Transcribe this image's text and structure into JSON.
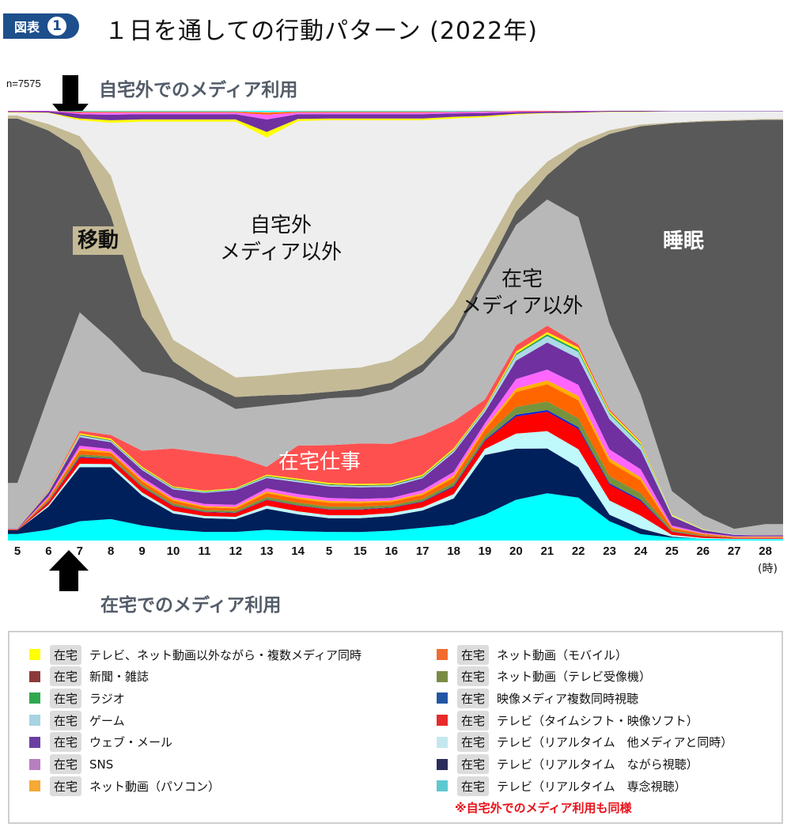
{
  "header": {
    "badge": "図表",
    "badge_number": "1",
    "title": "１日を通しての行動パターン (2022年)"
  },
  "sample": "n=7575",
  "captions": {
    "outside": "自宅外でのメディア利用",
    "home": "在宅でのメディア利用"
  },
  "annotations": {
    "commute": "移動",
    "outside_nonmedia": [
      "自宅外",
      "メディア以外"
    ],
    "home_nonmedia": [
      "在宅",
      "メディア以外"
    ],
    "sleep": "睡眠",
    "home_work": "在宅仕事"
  },
  "chart_data": {
    "type": "area",
    "stacked": true,
    "unit": "%",
    "ylim": [
      0,
      100
    ],
    "xlabel": "(時)",
    "categories": [
      "5",
      "6",
      "7",
      "8",
      "9",
      "10",
      "11",
      "12",
      "13",
      "14",
      "5",
      "15",
      "16",
      "17",
      "18",
      "19",
      "20",
      "21",
      "22",
      "23",
      "24",
      "25",
      "26",
      "27",
      "28"
    ],
    "series": [
      {
        "group": "在宅",
        "name": "テレビ（リアルタイム　専念視聴）",
        "color": "#00ffff",
        "values": [
          1.5,
          2.5,
          4.5,
          5,
          3.5,
          2.5,
          2,
          2,
          2.5,
          2.2,
          2,
          2,
          2.3,
          3,
          3.7,
          6,
          9.5,
          11,
          10,
          4.5,
          1.5,
          0.7,
          0.4,
          0.3,
          0.3
        ]
      },
      {
        "group": "在宅",
        "name": "テレビ（リアルタイム　ながら視聴）",
        "color": "#00205b",
        "values": [
          0.9,
          5.4,
          12.6,
          12.1,
          7,
          3.8,
          3.2,
          3,
          4.9,
          3.9,
          3.2,
          3.2,
          3.4,
          4,
          6.1,
          13.9,
          11.9,
          10.4,
          7.1,
          1.5,
          1.3,
          0.2,
          0,
          0,
          0
        ]
      },
      {
        "group": "在宅",
        "name": "テレビ（リアルタイム　他メディアと同時）",
        "color": "#c0f9fb",
        "values": [
          0,
          0.4,
          0.8,
          0.7,
          0.7,
          0.6,
          0.5,
          0.5,
          0.7,
          0.7,
          0.7,
          0.7,
          0.7,
          0.7,
          1.0,
          1.4,
          3.5,
          4.0,
          4.2,
          3.3,
          3.0,
          0.4,
          0.2,
          0.1,
          0.1
        ]
      },
      {
        "group": "在宅",
        "name": "テレビ（タイムシフト・映像ソフト）",
        "color": "#ff0000",
        "values": [
          0.1,
          0.7,
          1.4,
          1.2,
          1.2,
          1.1,
          0.9,
          0.9,
          1.3,
          1.3,
          1.3,
          1.3,
          1.2,
          1.3,
          1.7,
          1.9,
          4.0,
          4.5,
          4.7,
          3.7,
          3.4,
          0.7,
          0.4,
          0.2,
          0.2
        ]
      },
      {
        "group": "在宅",
        "name": "映像メディア複数同時視聴",
        "color": "#0022dd",
        "values": [
          0,
          0.1,
          0.2,
          0.1,
          0.1,
          0.1,
          0.1,
          0.1,
          0.1,
          0.1,
          0.1,
          0.1,
          0.1,
          0.1,
          0.2,
          0.2,
          0.4,
          0.4,
          0.4,
          0.3,
          0.3,
          0.1,
          0,
          0,
          0
        ]
      },
      {
        "group": "在宅",
        "name": "ネット動画（テレビ受像機）",
        "color": "#77933c",
        "values": [
          0,
          0.3,
          0.6,
          0.5,
          0.5,
          0.5,
          0.4,
          0.4,
          0.6,
          0.6,
          0.6,
          0.6,
          0.5,
          0.6,
          0.8,
          0.9,
          1.8,
          2.0,
          2.1,
          1.7,
          1.5,
          0.3,
          0.2,
          0.1,
          0.1
        ]
      },
      {
        "group": "在宅",
        "name": "ネット動画（モバイル）",
        "color": "#ff6600",
        "values": [
          0.1,
          0.4,
          0.9,
          0.8,
          0.8,
          0.7,
          0.6,
          0.6,
          0.9,
          0.9,
          0.9,
          0.8,
          0.8,
          0.9,
          1.1,
          1.5,
          3.5,
          4.0,
          4.2,
          3.3,
          3.0,
          0.5,
          0.3,
          0.1,
          0.1
        ]
      },
      {
        "group": "在宅",
        "name": "ネット動画（パソコン）",
        "color": "#ffb000",
        "values": [
          0,
          0.2,
          0.4,
          0.3,
          0.3,
          0.3,
          0.3,
          0.3,
          0.4,
          0.4,
          0.4,
          0.4,
          0.3,
          0.4,
          0.5,
          0.5,
          0.8,
          0.9,
          1.0,
          0.8,
          0.7,
          0.2,
          0.1,
          0.1,
          0.1
        ]
      },
      {
        "group": "在宅",
        "name": "SNS",
        "color": "#ff66ff",
        "values": [
          0,
          0.3,
          0.7,
          0.6,
          0.6,
          0.5,
          0.5,
          0.5,
          0.7,
          0.7,
          0.7,
          0.6,
          0.6,
          0.7,
          0.9,
          1.0,
          2.2,
          2.5,
          2.6,
          2.1,
          1.9,
          0.4,
          0.2,
          0.1,
          0.1
        ]
      },
      {
        "group": "在宅",
        "name": "ウェブ・メール",
        "color": "#7030a0",
        "values": [
          0.1,
          0.9,
          2.0,
          1.6,
          1.7,
          1.8,
          2.6,
          3.4,
          2.4,
          2.8,
          2.7,
          2.7,
          2.6,
          2.8,
          4.5,
          2.6,
          4.3,
          6.3,
          6.2,
          7.0,
          4.5,
          2.1,
          0.6,
          0.3,
          0.2
        ]
      },
      {
        "group": "在宅",
        "name": "ゲーム",
        "color": "#add8e6",
        "values": [
          0,
          0.2,
          0.4,
          0.3,
          0.3,
          0.3,
          0.2,
          0.2,
          0.3,
          0.3,
          0.3,
          0.3,
          0.3,
          0.3,
          0.4,
          0.6,
          1.3,
          1.5,
          1.5,
          1.2,
          1.1,
          0.2,
          0.1,
          0.1,
          0
        ]
      },
      {
        "group": "在宅",
        "name": "ラジオ",
        "color": "#00b050",
        "values": [
          0,
          0.1,
          0.1,
          0.1,
          0.1,
          0.1,
          0.1,
          0.1,
          0.1,
          0.1,
          0.1,
          0.1,
          0.1,
          0.1,
          0.1,
          0.1,
          0.2,
          0.3,
          0.3,
          0.2,
          0.2,
          0,
          0,
          0,
          0
        ]
      },
      {
        "group": "在宅",
        "name": "新聞・雑誌",
        "color": "#8b3a3a",
        "values": [
          0,
          0,
          0.1,
          0.1,
          0.1,
          0.1,
          0,
          0,
          0.1,
          0.1,
          0.1,
          0.1,
          0.1,
          0.1,
          0.1,
          0.1,
          0.1,
          0.1,
          0.1,
          0.1,
          0.1,
          0,
          0,
          0,
          0
        ]
      },
      {
        "group": "在宅",
        "name": "テレビ、ネット動画以外ながら・複数メディア同時",
        "color": "#ffff00",
        "values": [
          0,
          0.1,
          0.3,
          0.3,
          0.3,
          0.2,
          0.2,
          0.2,
          0.3,
          0.3,
          0.3,
          0.3,
          0.3,
          0.3,
          0.4,
          0.3,
          0.5,
          0.5,
          0.6,
          0.4,
          0.4,
          0.2,
          0.1,
          0,
          0
        ]
      },
      {
        "name": "在宅仕事",
        "color": "#ff5050",
        "values": [
          0,
          0.2,
          0.6,
          0.9,
          3.7,
          8.8,
          8.8,
          7.4,
          1.8,
          7.7,
          8.8,
          9.4,
          9.2,
          9.2,
          6.3,
          1.8,
          1.5,
          1.5,
          0.7,
          0.4,
          0.2,
          0,
          0,
          0,
          0
        ]
      },
      {
        "name": "在宅メディア以外",
        "color": "#b8b8b8",
        "values": [
          10.7,
          21.9,
          27.6,
          22.1,
          18.4,
          16.4,
          14.2,
          11,
          14.2,
          10.1,
          10.9,
          10.9,
          12.5,
          14.7,
          19.3,
          27.6,
          28,
          29.3,
          29.7,
          19.9,
          10.9,
          5.5,
          3.3,
          1.3,
          2.6
        ]
      },
      {
        "name": "睡眠",
        "color": "#595959",
        "values": [
          84.7,
          61.7,
          37.8,
          28.9,
          12.9,
          3.9,
          2.2,
          2.8,
          2.4,
          1.8,
          1.5,
          1.8,
          1.7,
          1.8,
          1.5,
          1.8,
          3.1,
          5.7,
          16,
          44.2,
          62.6,
          85.5,
          91.3,
          94.8,
          93.9
        ]
      },
      {
        "name": "移動",
        "color": "#c4ba96",
        "values": [
          0.7,
          1.5,
          3.3,
          9.4,
          10.1,
          5.0,
          5.5,
          4.6,
          4.6,
          5.2,
          5.2,
          5.0,
          5.2,
          5.5,
          6.4,
          5.5,
          4.2,
          3.1,
          1.5,
          0.9,
          0.4,
          0.2,
          0.2,
          0.2,
          0.2
        ]
      },
      {
        "name": "自宅外メディア以外",
        "color": "#eeeeee",
        "values": [
          0.7,
          2.6,
          3.7,
          12.3,
          35.2,
          50.8,
          55.1,
          59.5,
          55.2,
          58.4,
          58,
          57.6,
          55.8,
          51.2,
          43.3,
          30.8,
          18.4,
          11.2,
          6.8,
          4.2,
          2.9,
          2.6,
          2.2,
          2.0,
          1.8
        ]
      },
      {
        "group": "自宅外",
        "name": "テレビ、ネット動画以外ながら・複数メディア同時",
        "color": "#ffff00",
        "values": [
          0.1,
          0.1,
          0.4,
          0.6,
          0.5,
          0.5,
          0.5,
          0.5,
          1.3,
          0.5,
          0.4,
          0.4,
          0.4,
          0.4,
          0.4,
          0.3,
          0.2,
          0.1,
          0.1,
          0.1,
          0.1,
          0,
          0,
          0,
          0
        ]
      },
      {
        "group": "自宅外",
        "name": "ウェブ・メール",
        "color": "#7030a0",
        "values": [
          0.2,
          0.3,
          1.0,
          1.3,
          1.2,
          1.2,
          1.2,
          1.2,
          2.9,
          1.1,
          1.0,
          1.0,
          1.0,
          1.0,
          0.8,
          0.7,
          0.4,
          0.3,
          0.3,
          0.2,
          0.2,
          0.1,
          0.1,
          0.1,
          0.1
        ]
      },
      {
        "group": "自宅外",
        "name": "SNS",
        "color": "#ff66ff",
        "values": [
          0.1,
          0.1,
          0.4,
          0.5,
          0.4,
          0.4,
          0.4,
          0.4,
          1.1,
          0.4,
          0.4,
          0.4,
          0.4,
          0.4,
          0.3,
          0.3,
          0.2,
          0.1,
          0.1,
          0,
          0,
          0,
          0,
          0,
          0
        ]
      },
      {
        "group": "自宅外",
        "name": "ネット動画（モバイル）",
        "color": "#ff6600",
        "values": [
          0,
          0,
          0.2,
          0.2,
          0.2,
          0.2,
          0.2,
          0.2,
          0.5,
          0.2,
          0.2,
          0.2,
          0.2,
          0.2,
          0.1,
          0.1,
          0.1,
          0.1,
          0,
          0,
          0,
          0,
          0,
          0,
          0
        ]
      },
      {
        "group": "自宅外",
        "name": "ゲーム",
        "color": "#add8e6",
        "values": [
          0,
          0,
          0.1,
          0.1,
          0.1,
          0.1,
          0.1,
          0.1,
          0.2,
          0.1,
          0.1,
          0.1,
          0.1,
          0.1,
          0.1,
          0,
          0,
          0,
          0,
          0,
          0,
          0,
          0,
          0,
          0
        ]
      },
      {
        "group": "自宅外",
        "name": "テレビ（リアルタイム　専念視聴）",
        "color": "#00ffff",
        "values": [
          0,
          0,
          0.1,
          0.1,
          0.1,
          0.1,
          0.1,
          0.1,
          0.2,
          0.1,
          0.1,
          0.1,
          0.1,
          0.1,
          0.1,
          0.1,
          0,
          0,
          0,
          0,
          0,
          0,
          0,
          0,
          0
        ]
      }
    ]
  },
  "legend": {
    "tag": "在宅",
    "left": [
      {
        "label": "テレビ、ネット動画以外ながら・複数メディア同時",
        "color": "#ffff00"
      },
      {
        "label": "新聞・雑誌",
        "color": "#8b3a3a"
      },
      {
        "label": "ラジオ",
        "color": "#2ea84f"
      },
      {
        "label": "ゲーム",
        "color": "#a6d4e0"
      },
      {
        "label": "ウェブ・メール",
        "color": "#6b3fa0"
      },
      {
        "label": "SNS",
        "color": "#b77fbf"
      },
      {
        "label": "ネット動画（パソコン）",
        "color": "#f6a934"
      }
    ],
    "right": [
      {
        "label": "ネット動画（モバイル）",
        "color": "#f26b2e"
      },
      {
        "label": "ネット動画（テレビ受像機）",
        "color": "#7a8c44"
      },
      {
        "label": "映像メディア複数同時視聴",
        "color": "#2355a5"
      },
      {
        "label": "テレビ（タイムシフト・映像ソフト）",
        "color": "#e82a2a"
      },
      {
        "label": "テレビ（リアルタイム　他メディアと同時）",
        "color": "#c4e8ee"
      },
      {
        "label": "テレビ（リアルタイム　ながら視聴）",
        "color": "#2a2d5a"
      },
      {
        "label": "テレビ（リアルタイム　専念視聴）",
        "color": "#5ec8d0"
      }
    ],
    "note": "※自宅外でのメディア利用も同様"
  }
}
